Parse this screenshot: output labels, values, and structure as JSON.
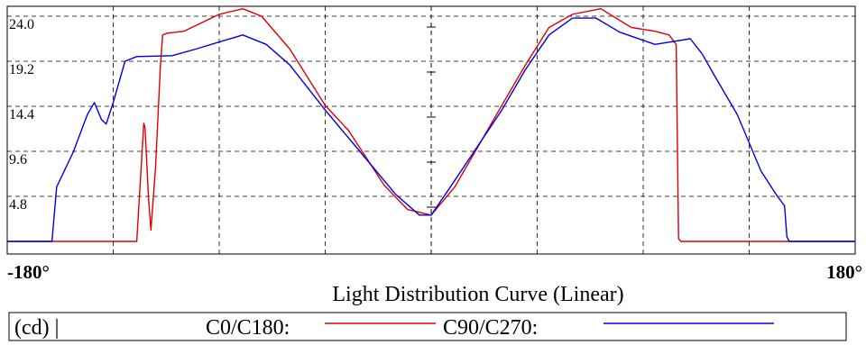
{
  "chart_data": {
    "type": "line",
    "title": "Light Distribution Curve (Linear)",
    "xlabel": "",
    "ylabel": "",
    "xlim": [
      -180,
      180
    ],
    "ylim": [
      0,
      26
    ],
    "x_tick_labels": [
      "-180°",
      "180°"
    ],
    "y_ticks": [
      "4.8",
      "9.6",
      "14.4",
      "19.2",
      "24.0"
    ],
    "y_tick_values": [
      4.8,
      9.6,
      14.4,
      19.2,
      24.0
    ],
    "grid": true,
    "legend": {
      "unit_label": "(cd) |",
      "placement": "bottom"
    },
    "series": [
      {
        "name": "C0/C180:",
        "color": "#e00000",
        "points": [
          [
            -180,
            0
          ],
          [
            -161,
            0
          ],
          [
            -135,
            0
          ],
          [
            -125,
            0
          ],
          [
            -122,
            12.6
          ],
          [
            -121.5,
            12.1
          ],
          [
            -120,
            4.5
          ],
          [
            -119,
            1.2
          ],
          [
            -117,
            8.0
          ],
          [
            -115,
            18.5
          ],
          [
            -114,
            22.0
          ],
          [
            -112,
            22.2
          ],
          [
            -105,
            22.4
          ],
          [
            -90,
            24.2
          ],
          [
            -80,
            24.8
          ],
          [
            -72,
            24.0
          ],
          [
            -60,
            20.5
          ],
          [
            -45,
            14.5
          ],
          [
            -35,
            11.8
          ],
          [
            -20,
            6.0
          ],
          [
            -10,
            3.4
          ],
          [
            0,
            2.8
          ],
          [
            10,
            5.8
          ],
          [
            30,
            14.5
          ],
          [
            40,
            18.8
          ],
          [
            50,
            22.8
          ],
          [
            60,
            24.2
          ],
          [
            72,
            24.8
          ],
          [
            85,
            22.8
          ],
          [
            95,
            22.4
          ],
          [
            101,
            22.0
          ],
          [
            104,
            21.0
          ],
          [
            105,
            0.3
          ],
          [
            106,
            0
          ],
          [
            120,
            0
          ],
          [
            140,
            0
          ],
          [
            150,
            0
          ],
          [
            180,
            0
          ]
        ]
      },
      {
        "name": "C90/C270:",
        "color": "#0000dd",
        "points": [
          [
            -180,
            0
          ],
          [
            -161,
            0
          ],
          [
            -159,
            5.8
          ],
          [
            -152,
            9.5
          ],
          [
            -146,
            13.5
          ],
          [
            -143,
            14.8
          ],
          [
            -140,
            13.0
          ],
          [
            -138,
            12.5
          ],
          [
            -135,
            14.8
          ],
          [
            -130,
            19.2
          ],
          [
            -125,
            19.7
          ],
          [
            -110,
            19.8
          ],
          [
            -100,
            20.5
          ],
          [
            -80,
            22.0
          ],
          [
            -70,
            21.0
          ],
          [
            -60,
            18.8
          ],
          [
            -45,
            14.0
          ],
          [
            -30,
            9.5
          ],
          [
            -15,
            5.0
          ],
          [
            -5,
            2.8
          ],
          [
            0,
            2.8
          ],
          [
            10,
            6.5
          ],
          [
            30,
            14.0
          ],
          [
            40,
            18.3
          ],
          [
            50,
            22.0
          ],
          [
            60,
            23.8
          ],
          [
            70,
            23.8
          ],
          [
            80,
            22.3
          ],
          [
            95,
            21.0
          ],
          [
            110,
            21.6
          ],
          [
            115,
            20.0
          ],
          [
            120,
            17.8
          ],
          [
            130,
            13.5
          ],
          [
            140,
            7.5
          ],
          [
            147,
            4.8
          ],
          [
            150,
            3.8
          ],
          [
            151,
            0.5
          ],
          [
            152,
            0
          ],
          [
            165,
            0
          ],
          [
            180,
            0
          ]
        ]
      }
    ]
  }
}
